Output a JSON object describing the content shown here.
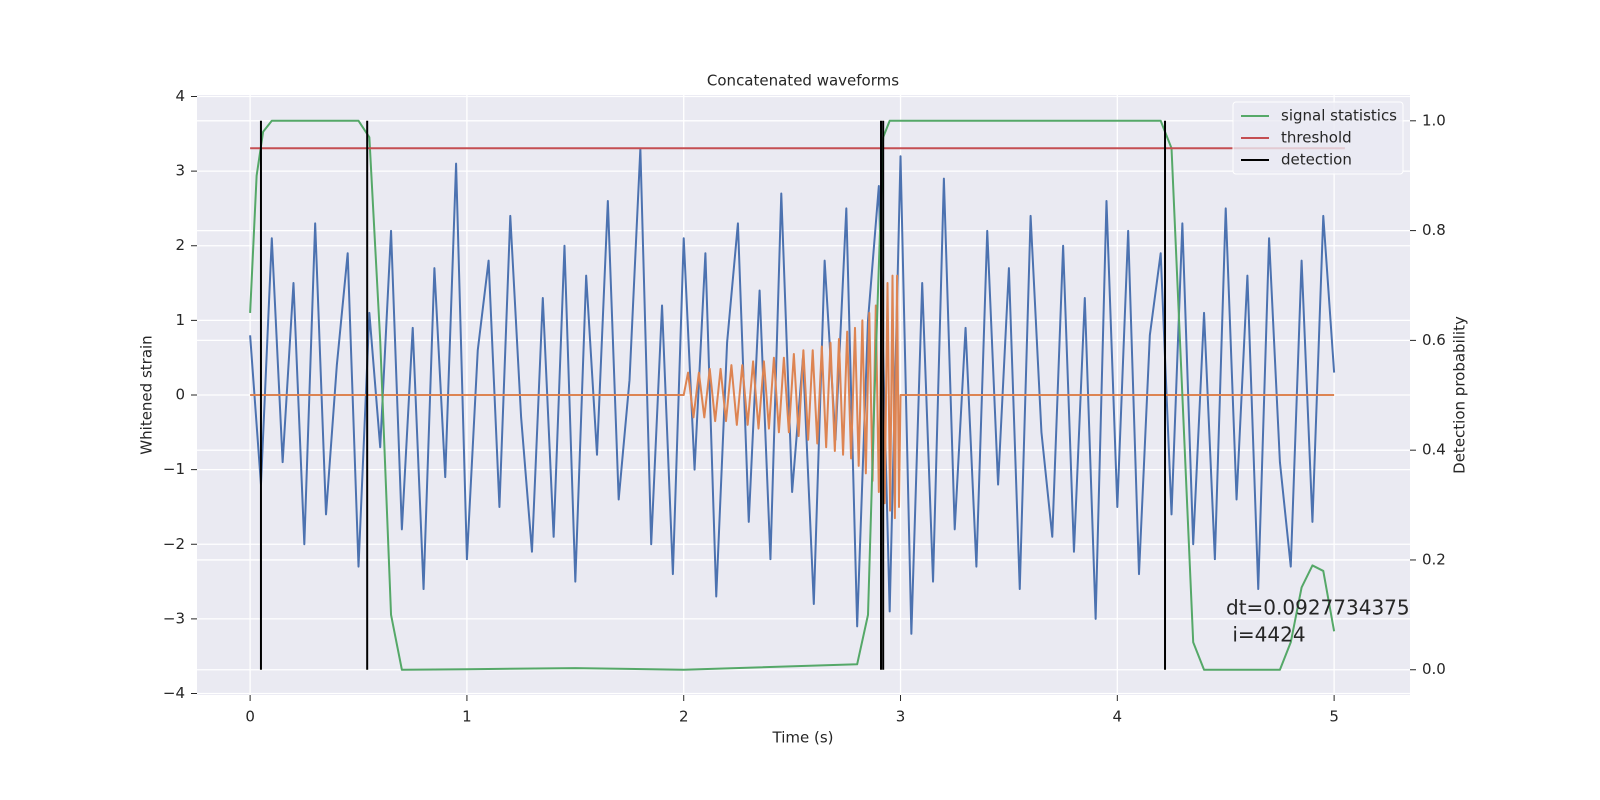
{
  "chart_data": {
    "type": "line",
    "title": "Concatenated waveforms",
    "xlabel": "Time (s)",
    "ylabel": "Whitened strain",
    "y2label": "Detection probability",
    "xlim": [
      -0.245,
      5.35
    ],
    "ylim": [
      -4.02,
      4.02
    ],
    "y2lim": [
      -0.046,
      1.047
    ],
    "xticks": [
      0,
      1,
      2,
      3,
      4,
      5
    ],
    "yticks": [
      {
        "value": -4,
        "label": "−4"
      },
      {
        "value": -3,
        "label": "−3"
      },
      {
        "value": -2,
        "label": "−2"
      },
      {
        "value": -1,
        "label": "−1"
      },
      0,
      1,
      2,
      3,
      4
    ],
    "y2ticks": [
      {
        "value": 0,
        "label": "0.0"
      },
      0.2,
      0.4,
      0.6,
      0.8,
      {
        "value": 1,
        "label": "1.0"
      }
    ],
    "grid": true,
    "legend": "upper right",
    "annotation": [
      "dt=0.0927734375",
      " i=4424"
    ],
    "series": [
      {
        "color": "#4c72b0",
        "axis": "y",
        "x": [
          0,
          0.05,
          0.1,
          0.15,
          0.2,
          0.25,
          0.3,
          0.35,
          0.4,
          0.45,
          0.5,
          0.55,
          0.6,
          0.65,
          0.7,
          0.75,
          0.8,
          0.85,
          0.9,
          0.95,
          1,
          1.05,
          1.1,
          1.15,
          1.2,
          1.25,
          1.3,
          1.35,
          1.4,
          1.45,
          1.5,
          1.55,
          1.6,
          1.65,
          1.7,
          1.75,
          1.8,
          1.85,
          1.9,
          1.95,
          2,
          2.05,
          2.1,
          2.15,
          2.2,
          2.25,
          2.3,
          2.35,
          2.4,
          2.45,
          2.5,
          2.55,
          2.6,
          2.65,
          2.7,
          2.75,
          2.8,
          2.85,
          2.9,
          2.95,
          3,
          3.05,
          3.1,
          3.15,
          3.2,
          3.25,
          3.3,
          3.35,
          3.4,
          3.45,
          3.5,
          3.55,
          3.6,
          3.65,
          3.7,
          3.75,
          3.8,
          3.85,
          3.9,
          3.95,
          4,
          4.05,
          4.1,
          4.15,
          4.2,
          4.25,
          4.3,
          4.35,
          4.4,
          4.45,
          4.5,
          4.55,
          4.6,
          4.65,
          4.7,
          4.75,
          4.8,
          4.85,
          4.9,
          4.95,
          5
        ],
        "values": [
          0.8,
          -1.2,
          2.1,
          -0.9,
          1.5,
          -2.0,
          2.3,
          -1.6,
          0.4,
          1.9,
          -2.3,
          1.1,
          -0.7,
          2.2,
          -1.8,
          0.9,
          -2.6,
          1.7,
          -1.1,
          3.1,
          -2.2,
          0.6,
          1.8,
          -1.5,
          2.4,
          -0.3,
          -2.1,
          1.3,
          -1.9,
          2.0,
          -2.5,
          1.6,
          -0.8,
          2.6,
          -1.4,
          0.2,
          3.3,
          -2.0,
          1.2,
          -2.4,
          2.1,
          -1.0,
          1.9,
          -2.7,
          0.7,
          2.3,
          -1.7,
          1.4,
          -2.2,
          2.7,
          -1.3,
          0.5,
          -2.8,
          1.8,
          -0.6,
          2.5,
          -3.1,
          1.0,
          2.8,
          -2.9,
          3.2,
          -3.2,
          1.5,
          -2.5,
          2.9,
          -1.8,
          0.9,
          -2.3,
          2.2,
          -1.2,
          1.7,
          -2.6,
          2.4,
          -0.5,
          -1.9,
          2.0,
          -2.1,
          1.3,
          -3.0,
          2.6,
          -1.5,
          2.2,
          -2.4,
          0.8,
          1.9,
          -1.6,
          2.3,
          -2.0,
          1.1,
          -2.2,
          2.5,
          -1.4,
          1.6,
          -2.6,
          2.1,
          -0.9,
          -2.3,
          1.8,
          -1.7,
          2.4,
          0.3
        ]
      },
      {
        "color": "#dd8452",
        "axis": "y",
        "x": [
          0,
          2.0,
          2.02,
          2.045,
          2.07,
          2.095,
          2.12,
          2.145,
          2.17,
          2.195,
          2.22,
          2.245,
          2.27,
          2.295,
          2.32,
          2.345,
          2.37,
          2.393,
          2.416,
          2.439,
          2.462,
          2.485,
          2.508,
          2.53,
          2.552,
          2.574,
          2.595,
          2.616,
          2.637,
          2.657,
          2.677,
          2.697,
          2.716,
          2.735,
          2.754,
          2.772,
          2.79,
          2.807,
          2.824,
          2.84,
          2.856,
          2.871,
          2.886,
          2.9,
          2.914,
          2.927,
          2.94,
          2.952,
          2.963,
          2.974,
          2.984,
          2.993,
          3.0,
          5.0
        ],
        "values": [
          0,
          0,
          0.3,
          -0.3,
          0.3,
          -0.3,
          0.35,
          -0.35,
          0.35,
          -0.35,
          0.4,
          -0.4,
          0.4,
          -0.4,
          0.45,
          -0.45,
          0.45,
          -0.45,
          0.5,
          -0.5,
          0.5,
          -0.5,
          0.55,
          -0.55,
          0.6,
          -0.6,
          0.6,
          -0.65,
          0.65,
          -0.7,
          0.7,
          -0.75,
          0.75,
          -0.8,
          0.85,
          -0.85,
          0.9,
          -0.95,
          1.0,
          -1.05,
          1.1,
          -1.15,
          1.2,
          -1.3,
          1.4,
          -1.45,
          1.5,
          -1.55,
          1.6,
          -1.65,
          1.6,
          -1.5,
          0,
          0
        ]
      },
      {
        "name": "signal statistics",
        "color": "#55a868",
        "axis": "y2",
        "x": [
          0,
          0.03,
          0.06,
          0.1,
          0.3,
          0.5,
          0.55,
          0.6,
          0.65,
          0.7,
          1.0,
          1.5,
          2.0,
          2.8,
          2.85,
          2.88,
          2.92,
          2.95,
          3.5,
          4.2,
          4.25,
          4.3,
          4.35,
          4.4,
          4.75,
          4.8,
          4.85,
          4.9,
          4.95,
          5.0
        ],
        "values": [
          0.65,
          0.9,
          0.98,
          1.0,
          1.0,
          1.0,
          0.97,
          0.6,
          0.1,
          0.0,
          0.001,
          0.003,
          0.0,
          0.01,
          0.1,
          0.5,
          0.97,
          1.0,
          1.0,
          1.0,
          0.95,
          0.5,
          0.05,
          0.0,
          0.0,
          0.05,
          0.15,
          0.19,
          0.18,
          0.07
        ]
      },
      {
        "name": "threshold",
        "color": "#c44e52",
        "axis": "y2",
        "x": [
          0,
          5.05
        ],
        "values": [
          0.95,
          0.95
        ]
      },
      {
        "name": "detection",
        "color": "#000000",
        "axis": "y2",
        "kind": "vline",
        "x": [
          0.05,
          0.54,
          2.91,
          2.92,
          4.22
        ]
      }
    ]
  }
}
